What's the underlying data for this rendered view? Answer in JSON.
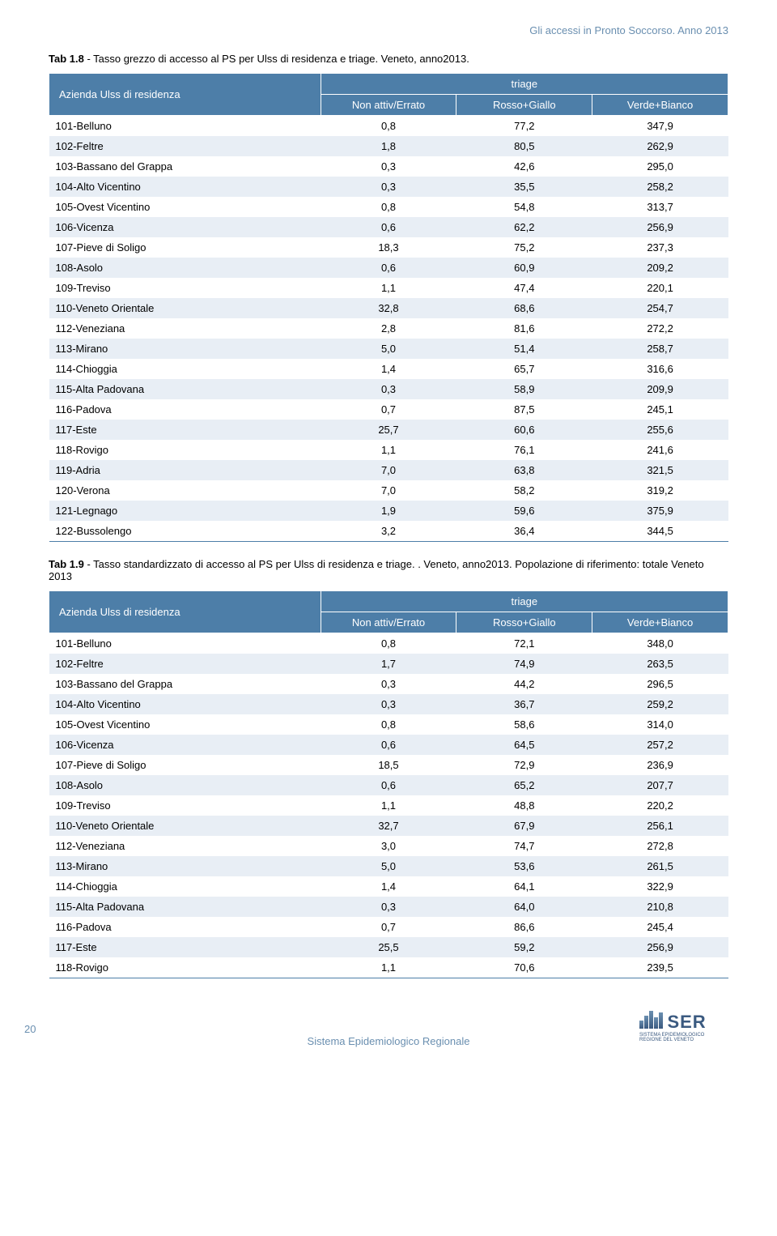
{
  "header_right": "Gli accessi in Pronto Soccorso. Anno 2013",
  "table1": {
    "caption_bold": "Tab 1.8",
    "caption_rest": " - Tasso grezzo di accesso al PS per Ulss di residenza e triage. Veneto, anno2013.",
    "row_header": "Azienda Ulss di residenza",
    "spanning_header": "triage",
    "cols": [
      "Non attiv/Errato",
      "Rosso+Giallo",
      "Verde+Bianco"
    ],
    "rows": [
      [
        "101-Belluno",
        "0,8",
        "77,2",
        "347,9"
      ],
      [
        "102-Feltre",
        "1,8",
        "80,5",
        "262,9"
      ],
      [
        "103-Bassano del Grappa",
        "0,3",
        "42,6",
        "295,0"
      ],
      [
        "104-Alto Vicentino",
        "0,3",
        "35,5",
        "258,2"
      ],
      [
        "105-Ovest Vicentino",
        "0,8",
        "54,8",
        "313,7"
      ],
      [
        "106-Vicenza",
        "0,6",
        "62,2",
        "256,9"
      ],
      [
        "107-Pieve di Soligo",
        "18,3",
        "75,2",
        "237,3"
      ],
      [
        "108-Asolo",
        "0,6",
        "60,9",
        "209,2"
      ],
      [
        "109-Treviso",
        "1,1",
        "47,4",
        "220,1"
      ],
      [
        "110-Veneto Orientale",
        "32,8",
        "68,6",
        "254,7"
      ],
      [
        "112-Veneziana",
        "2,8",
        "81,6",
        "272,2"
      ],
      [
        "113-Mirano",
        "5,0",
        "51,4",
        "258,7"
      ],
      [
        "114-Chioggia",
        "1,4",
        "65,7",
        "316,6"
      ],
      [
        "115-Alta Padovana",
        "0,3",
        "58,9",
        "209,9"
      ],
      [
        "116-Padova",
        "0,7",
        "87,5",
        "245,1"
      ],
      [
        "117-Este",
        "25,7",
        "60,6",
        "255,6"
      ],
      [
        "118-Rovigo",
        "1,1",
        "76,1",
        "241,6"
      ],
      [
        "119-Adria",
        "7,0",
        "63,8",
        "321,5"
      ],
      [
        "120-Verona",
        "7,0",
        "58,2",
        "319,2"
      ],
      [
        "121-Legnago",
        "1,9",
        "59,6",
        "375,9"
      ],
      [
        "122-Bussolengo",
        "3,2",
        "36,4",
        "344,5"
      ]
    ]
  },
  "table2": {
    "caption_bold": "Tab 1.9",
    "caption_rest": " - Tasso standardizzato di accesso al PS per Ulss di residenza e triage. . Veneto, anno2013. Popolazione di riferimento: totale Veneto 2013",
    "row_header": "Azienda Ulss di residenza",
    "spanning_header": "triage",
    "cols": [
      "Non attiv/Errato",
      "Rosso+Giallo",
      "Verde+Bianco"
    ],
    "rows": [
      [
        "101-Belluno",
        "0,8",
        "72,1",
        "348,0"
      ],
      [
        "102-Feltre",
        "1,7",
        "74,9",
        "263,5"
      ],
      [
        "103-Bassano del Grappa",
        "0,3",
        "44,2",
        "296,5"
      ],
      [
        "104-Alto Vicentino",
        "0,3",
        "36,7",
        "259,2"
      ],
      [
        "105-Ovest Vicentino",
        "0,8",
        "58,6",
        "314,0"
      ],
      [
        "106-Vicenza",
        "0,6",
        "64,5",
        "257,2"
      ],
      [
        "107-Pieve di Soligo",
        "18,5",
        "72,9",
        "236,9"
      ],
      [
        "108-Asolo",
        "0,6",
        "65,2",
        "207,7"
      ],
      [
        "109-Treviso",
        "1,1",
        "48,8",
        "220,2"
      ],
      [
        "110-Veneto Orientale",
        "32,7",
        "67,9",
        "256,1"
      ],
      [
        "112-Veneziana",
        "3,0",
        "74,7",
        "272,8"
      ],
      [
        "113-Mirano",
        "5,0",
        "53,6",
        "261,5"
      ],
      [
        "114-Chioggia",
        "1,4",
        "64,1",
        "322,9"
      ],
      [
        "115-Alta Padovana",
        "0,3",
        "64,0",
        "210,8"
      ],
      [
        "116-Padova",
        "0,7",
        "86,6",
        "245,4"
      ],
      [
        "117-Este",
        "25,5",
        "59,2",
        "256,9"
      ],
      [
        "118-Rovigo",
        "1,1",
        "70,6",
        "239,5"
      ]
    ]
  },
  "footer": {
    "page_num": "20",
    "center_text": "Sistema Epidemiologico Regionale",
    "logo_big": "SER",
    "logo_line1": "SISTEMA EPIDEMIOLOGICO",
    "logo_line2": "REGIONE DEL VENETO"
  }
}
